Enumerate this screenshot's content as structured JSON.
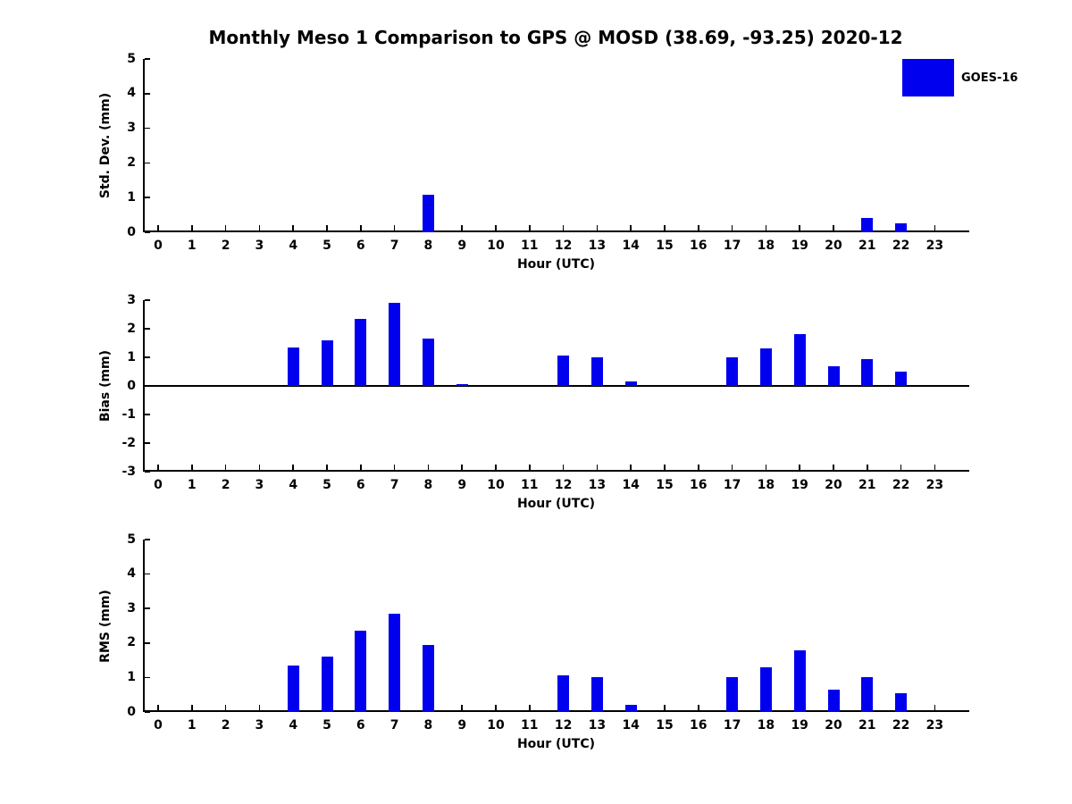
{
  "title": "Monthly Meso 1 Comparison to GPS @ MOSD (38.69, -93.25) 2020-12",
  "legend": {
    "label": "GOES-16"
  },
  "bar_color": "#0000EE",
  "chart_data": [
    {
      "type": "bar",
      "ylabel": "Std. Dev. (mm)",
      "xlabel": "Hour (UTC)",
      "categories": [
        0,
        1,
        2,
        3,
        4,
        5,
        6,
        7,
        8,
        9,
        10,
        11,
        12,
        13,
        14,
        15,
        16,
        17,
        18,
        19,
        20,
        21,
        22,
        23
      ],
      "values": [
        0,
        0,
        0,
        0,
        0,
        0,
        0,
        0,
        1.08,
        0,
        0,
        0,
        0,
        0,
        0,
        0,
        0,
        0,
        0,
        0,
        0,
        0.4,
        0.25,
        0
      ],
      "ylim": [
        0,
        5
      ],
      "yticks": [
        0,
        1,
        2,
        3,
        4,
        5
      ],
      "legend": "GOES-16",
      "grid": false,
      "legend_position": "top-right-outside"
    },
    {
      "type": "bar",
      "ylabel": "Bias (mm)",
      "xlabel": "Hour (UTC)",
      "categories": [
        0,
        1,
        2,
        3,
        4,
        5,
        6,
        7,
        8,
        9,
        10,
        11,
        12,
        13,
        14,
        15,
        16,
        17,
        18,
        19,
        20,
        21,
        22,
        23
      ],
      "values": [
        0,
        0,
        0,
        0,
        1.35,
        1.6,
        2.35,
        2.9,
        1.65,
        0.05,
        0,
        0,
        1.05,
        1.0,
        0.15,
        0,
        0,
        1.0,
        1.3,
        1.8,
        0.7,
        0.95,
        0.5,
        0
      ],
      "ylim": [
        -3,
        3
      ],
      "yticks": [
        -3,
        -2,
        -1,
        0,
        1,
        2,
        3
      ],
      "legend": "GOES-16",
      "grid": false
    },
    {
      "type": "bar",
      "ylabel": "RMS (mm)",
      "xlabel": "Hour (UTC)",
      "categories": [
        0,
        1,
        2,
        3,
        4,
        5,
        6,
        7,
        8,
        9,
        10,
        11,
        12,
        13,
        14,
        15,
        16,
        17,
        18,
        19,
        20,
        21,
        22,
        23
      ],
      "values": [
        0,
        0,
        0,
        0,
        1.35,
        1.6,
        2.35,
        2.85,
        1.95,
        0,
        0,
        0,
        1.05,
        1.0,
        0.2,
        0,
        0,
        1.0,
        1.3,
        1.8,
        0.65,
        1.0,
        0.55,
        0
      ],
      "ylim": [
        0,
        5
      ],
      "yticks": [
        0,
        1,
        2,
        3,
        4,
        5
      ],
      "legend": "GOES-16",
      "grid": false
    }
  ]
}
